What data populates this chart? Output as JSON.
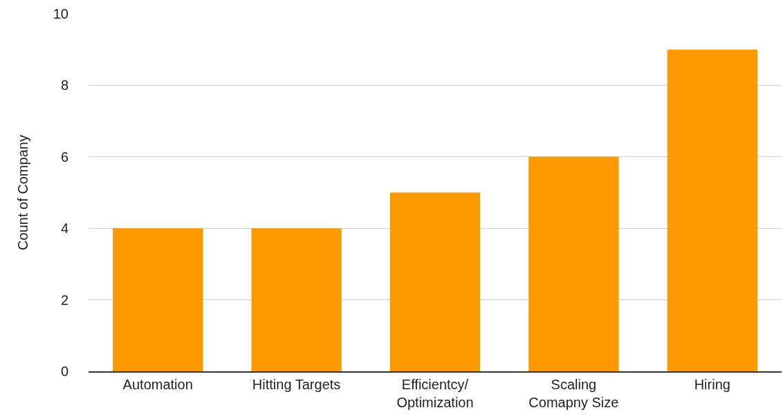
{
  "chart_data": {
    "type": "bar",
    "ylabel": "Count of Company",
    "categories": [
      "Automation",
      "Hitting Targets",
      "Efficientcy/ Optimization",
      "Scaling Comapny Size",
      "Hiring"
    ],
    "values": [
      4,
      4,
      5,
      6,
      9
    ],
    "color": "#ff9900",
    "ylim": [
      0,
      10
    ],
    "yticks": [
      0,
      2,
      4,
      6,
      8,
      10
    ],
    "grid": "y",
    "legend": false
  }
}
